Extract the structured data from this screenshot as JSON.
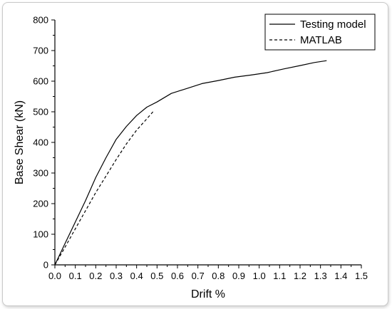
{
  "chart_data": {
    "type": "line",
    "title": "",
    "xlabel": "Drift %",
    "ylabel": "Base Shear (kN)",
    "xlim": [
      0.0,
      1.5
    ],
    "ylim": [
      0,
      800
    ],
    "x_ticks": [
      "0.0",
      "0.1",
      "0.2",
      "0.3",
      "0.4",
      "0.5",
      "0.6",
      "0.7",
      "0.8",
      "0.9",
      "1.0",
      "1.1",
      "1.2",
      "1.3",
      "1.4",
      "1.5"
    ],
    "y_ticks": [
      "0",
      "100",
      "200",
      "300",
      "400",
      "500",
      "600",
      "700",
      "800"
    ],
    "grid": false,
    "legend_position": "top-right",
    "series": [
      {
        "name": "Testing model",
        "style": "solid",
        "color": "#000000",
        "x": [
          0.0,
          0.05,
          0.1,
          0.15,
          0.2,
          0.25,
          0.3,
          0.35,
          0.4,
          0.45,
          0.5,
          0.57,
          0.65,
          0.72,
          0.8,
          0.88,
          0.96,
          1.04,
          1.12,
          1.2,
          1.27,
          1.33
        ],
        "y": [
          0,
          70,
          140,
          210,
          285,
          350,
          410,
          452,
          488,
          515,
          532,
          560,
          577,
          592,
          602,
          613,
          620,
          628,
          640,
          651,
          661,
          667
        ]
      },
      {
        "name": "MATLAB",
        "style": "dashed",
        "color": "#000000",
        "x": [
          0.0,
          0.05,
          0.1,
          0.15,
          0.2,
          0.25,
          0.3,
          0.35,
          0.4,
          0.45,
          0.48
        ],
        "y": [
          0,
          58,
          118,
          177,
          236,
          290,
          344,
          395,
          440,
          477,
          500
        ]
      }
    ]
  }
}
